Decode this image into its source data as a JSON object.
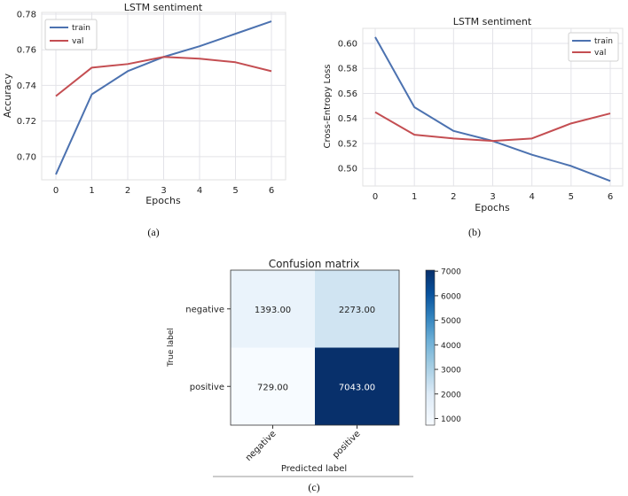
{
  "chart_data": [
    {
      "type": "line",
      "panel_label": "(a)",
      "title": "LSTM sentiment",
      "xlabel": "Epochs",
      "ylabel": "Accuracy",
      "x": [
        0,
        1,
        2,
        3,
        4,
        5,
        6
      ],
      "x_ticks": [
        "0",
        "1",
        "2",
        "3",
        "4",
        "5",
        "6"
      ],
      "y_ticks": [
        "0.70",
        "0.72",
        "0.74",
        "0.76",
        "0.78"
      ],
      "ylim": [
        0.687,
        0.781
      ],
      "grid": true,
      "legend_position": "top-left",
      "series": [
        {
          "name": "train",
          "color": "#4c72b0",
          "values": [
            0.69,
            0.735,
            0.748,
            0.756,
            0.762,
            0.769,
            0.776
          ]
        },
        {
          "name": "val",
          "color": "#c44e52",
          "values": [
            0.734,
            0.75,
            0.752,
            0.756,
            0.755,
            0.753,
            0.748
          ]
        }
      ]
    },
    {
      "type": "line",
      "panel_label": "(b)",
      "title": "LSTM sentiment",
      "xlabel": "Epochs",
      "ylabel": "Cross-Entropy Loss",
      "x": [
        0,
        1,
        2,
        3,
        4,
        5,
        6
      ],
      "x_ticks": [
        "0",
        "1",
        "2",
        "3",
        "4",
        "5",
        "6"
      ],
      "y_ticks": [
        "0.50",
        "0.52",
        "0.54",
        "0.56",
        "0.58",
        "0.60"
      ],
      "ylim": [
        0.486,
        0.612
      ],
      "grid": true,
      "legend_position": "top-right",
      "series": [
        {
          "name": "train",
          "color": "#4c72b0",
          "values": [
            0.605,
            0.549,
            0.53,
            0.522,
            0.511,
            0.502,
            0.49
          ]
        },
        {
          "name": "val",
          "color": "#c44e52",
          "values": [
            0.545,
            0.527,
            0.524,
            0.522,
            0.524,
            0.536,
            0.544
          ]
        }
      ]
    },
    {
      "type": "heatmap",
      "panel_label": "(c)",
      "title": "Confusion matrix",
      "xlabel": "Predicted label",
      "ylabel": "True label",
      "x_categories": [
        "negative",
        "positive"
      ],
      "y_categories": [
        "negative",
        "positive"
      ],
      "values": [
        [
          1393.0,
          2273.0
        ],
        [
          729.0,
          7043.0
        ]
      ],
      "cell_labels": [
        [
          "1393.00",
          "2273.00"
        ],
        [
          "729.00",
          "7043.00"
        ]
      ],
      "colorbar_ticks": [
        "1000",
        "2000",
        "3000",
        "4000",
        "5000",
        "6000",
        "7000"
      ],
      "colorbar_range": [
        729,
        7043
      ],
      "colormap": "Blues"
    }
  ]
}
